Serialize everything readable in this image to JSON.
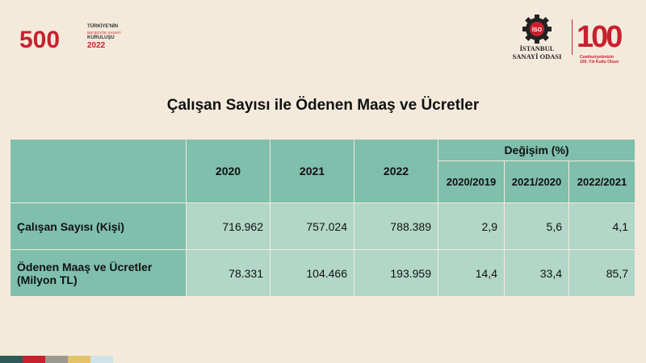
{
  "branding": {
    "left_logo": {
      "numeral": "500",
      "line1": "TÜRKİYE'NİN",
      "line2": "500 BÜYÜK SANAYİ",
      "line3": "KURULUŞU",
      "year": "2022"
    },
    "right_logo": {
      "org_line1": "İSTANBUL",
      "org_line2": "SANAYİ ODASI",
      "emblem_text": "İSO",
      "centennial_number": "100",
      "centennial_line1": "Cumhuriyetimizin",
      "centennial_line2": "100. Yılı Kutlu Olsun"
    }
  },
  "title": "Çalışan Sayısı ile Ödenen Maaş ve Ücretler",
  "table": {
    "year_headers": [
      "2020",
      "2021",
      "2022"
    ],
    "change_header": "Değişim (%)",
    "change_subheaders": [
      "2020/2019",
      "2021/2020",
      "2022/2021"
    ],
    "rows": [
      {
        "label": "Çalışan Sayısı (Kişi)",
        "values": [
          "716.962",
          "757.024",
          "788.389"
        ],
        "changes": [
          "2,9",
          "5,6",
          "4,1"
        ]
      },
      {
        "label_line1": "Ödenen Maaş ve Ücretler",
        "label_line2": "(Milyon TL)",
        "values": [
          "78.331",
          "104.466",
          "193.959"
        ],
        "changes": [
          "14,4",
          "33,4",
          "85,7"
        ]
      }
    ]
  },
  "colors": {
    "background": "#f4eadb",
    "header_fill": "#7fbfac",
    "cell_fill": "#b2d6c8",
    "brand_red": "#c8202f",
    "bottom_bar": [
      "#2e5a58",
      "#c8202f",
      "#9a9a8e",
      "#e3c36a",
      "#cfe3e8"
    ]
  }
}
